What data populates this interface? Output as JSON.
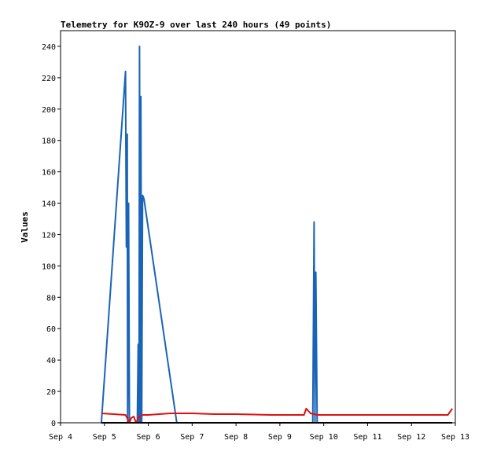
{
  "chart_data": {
    "type": "line",
    "title": "Telemetry for K9OZ-9 over last 240 hours (49 points)",
    "xlabel": "",
    "ylabel": "Values",
    "xlim": [
      4.0,
      13.0
    ],
    "ylim": [
      0,
      250
    ],
    "x_ticks": [
      {
        "value": 4,
        "label": "Sep 4"
      },
      {
        "value": 5,
        "label": "Sep 5"
      },
      {
        "value": 6,
        "label": "Sep 6"
      },
      {
        "value": 7,
        "label": "Sep 7"
      },
      {
        "value": 8,
        "label": "Sep 8"
      },
      {
        "value": 9,
        "label": "Sep 9"
      },
      {
        "value": 10,
        "label": "Sep 10"
      },
      {
        "value": 11,
        "label": "Sep 11"
      },
      {
        "value": 12,
        "label": "Sep 12"
      },
      {
        "value": 13,
        "label": "Sep 13"
      }
    ],
    "y_ticks": [
      0,
      20,
      40,
      60,
      80,
      100,
      120,
      140,
      160,
      180,
      200,
      220,
      240
    ],
    "grid": false,
    "series": [
      {
        "color": "#1a64b8",
        "points": [
          [
            4.93,
            0
          ],
          [
            5.48,
            224
          ],
          [
            5.5,
            112
          ],
          [
            5.52,
            184
          ],
          [
            5.53,
            0
          ],
          [
            5.55,
            140
          ],
          [
            5.57,
            0
          ],
          [
            5.75,
            0
          ],
          [
            5.77,
            50
          ],
          [
            5.79,
            0
          ],
          [
            5.8,
            240
          ],
          [
            5.82,
            0
          ],
          [
            5.83,
            208
          ],
          [
            5.85,
            0
          ],
          [
            5.87,
            145
          ],
          [
            5.9,
            143
          ],
          [
            6.65,
            0
          ],
          [
            9.75,
            0
          ],
          [
            9.78,
            128
          ],
          [
            9.8,
            0
          ],
          [
            9.82,
            96
          ],
          [
            9.85,
            0
          ]
        ]
      },
      {
        "color": "#e01010",
        "points": [
          [
            4.93,
            6
          ],
          [
            5.48,
            5
          ],
          [
            5.52,
            3
          ],
          [
            5.57,
            0
          ],
          [
            5.61,
            3
          ],
          [
            5.67,
            4
          ],
          [
            5.72,
            0
          ],
          [
            5.8,
            4
          ],
          [
            5.88,
            5
          ],
          [
            6.0,
            5
          ],
          [
            6.5,
            6
          ],
          [
            7.0,
            6
          ],
          [
            7.5,
            5.5
          ],
          [
            8.0,
            5.5
          ],
          [
            8.8,
            5
          ],
          [
            9.0,
            5
          ],
          [
            9.55,
            5
          ],
          [
            9.6,
            9
          ],
          [
            9.7,
            6
          ],
          [
            9.85,
            5
          ],
          [
            10.5,
            5
          ],
          [
            11.0,
            5
          ],
          [
            12.0,
            5
          ],
          [
            12.83,
            5
          ],
          [
            12.93,
            9
          ]
        ]
      },
      {
        "color": "#000000",
        "points": [
          [
            4.93,
            0
          ],
          [
            12.93,
            0
          ]
        ]
      }
    ]
  }
}
